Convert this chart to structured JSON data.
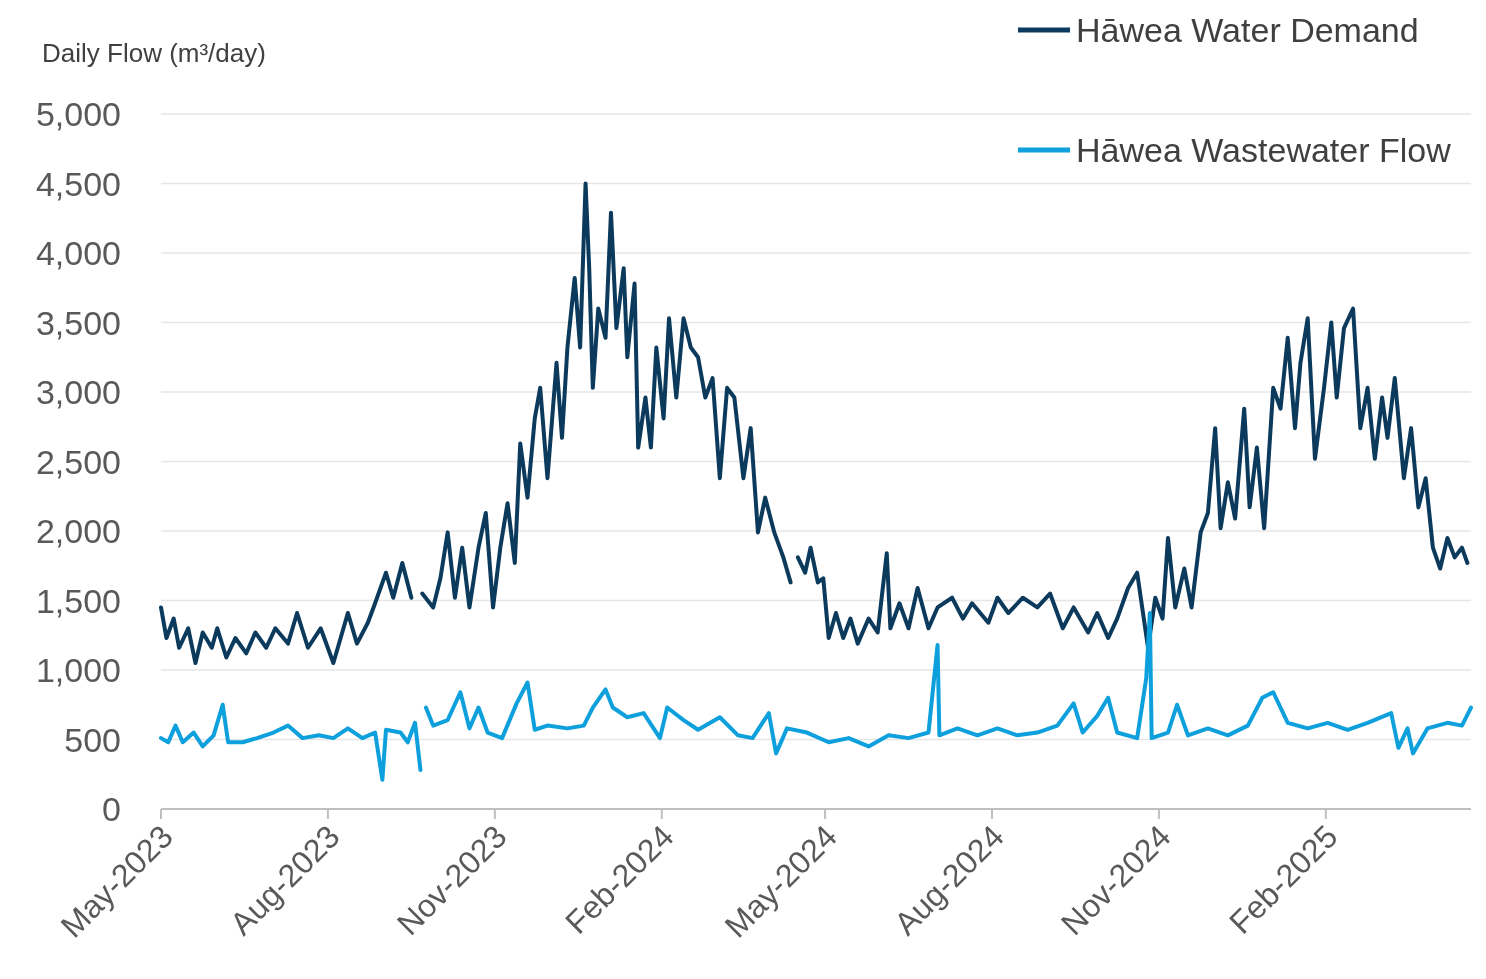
{
  "chart_data": {
    "type": "line",
    "ylabel": "Daily Flow (m³/day)",
    "xlim": [
      "2023-05-01",
      "2025-04-22"
    ],
    "xticks": [
      {
        "value": "2023-05-01",
        "label": "May-2023"
      },
      {
        "value": "2023-08-01",
        "label": "Aug-2023"
      },
      {
        "value": "2023-11-01",
        "label": "Nov-2023"
      },
      {
        "value": "2024-02-01",
        "label": "Feb-2024"
      },
      {
        "value": "2024-05-01",
        "label": "May-2024"
      },
      {
        "value": "2024-08-01",
        "label": "Aug-2024"
      },
      {
        "value": "2024-11-01",
        "label": "Nov-2024"
      },
      {
        "value": "2025-02-01",
        "label": "Feb-2025"
      }
    ],
    "ylim": [
      0,
      5000
    ],
    "yticks": [
      {
        "value": 0,
        "label": "0"
      },
      {
        "value": 500,
        "label": "500"
      },
      {
        "value": 1000,
        "label": "1,000"
      },
      {
        "value": 1500,
        "label": "1,500"
      },
      {
        "value": 2000,
        "label": "2,000"
      },
      {
        "value": 2500,
        "label": "2,500"
      },
      {
        "value": 3000,
        "label": "3,000"
      },
      {
        "value": 3500,
        "label": "3,500"
      },
      {
        "value": 4000,
        "label": "4,000"
      },
      {
        "value": 4500,
        "label": "4,500"
      },
      {
        "value": 5000,
        "label": "5,000"
      }
    ],
    "grid": "y",
    "legend": "top right",
    "marker": "none",
    "line_style": "solid",
    "series": [
      {
        "name": "Hāwea Water Demand",
        "color": "#0b3a5c",
        "x": [
          "2023-05-01",
          "2023-05-04",
          "2023-05-08",
          "2023-05-11",
          "2023-05-16",
          "2023-05-20",
          "2023-05-24",
          "2023-05-29",
          "2023-06-01",
          "2023-06-06",
          "2023-06-11",
          "2023-06-17",
          "2023-06-22",
          "2023-06-28",
          "2023-07-03",
          "2023-07-10",
          "2023-07-15",
          "2023-07-21",
          "2023-07-28",
          "2023-08-04",
          "2023-08-12",
          "2023-08-17",
          "2023-08-23",
          "2023-08-27",
          "2023-09-02",
          "2023-09-06",
          "2023-09-11",
          "2023-09-16",
          "2023-09-20",
          "2023-09-22",
          "2023-09-28",
          "2023-10-02",
          "2023-10-06",
          "2023-10-10",
          "2023-10-14",
          "2023-10-18",
          "2023-10-23",
          "2023-10-27",
          "2023-10-31",
          "2023-11-04",
          "2023-11-08",
          "2023-11-12",
          "2023-11-15",
          "2023-11-19",
          "2023-11-23",
          "2023-11-26",
          "2023-11-30",
          "2023-12-05",
          "2023-12-08",
          "2023-12-11",
          "2023-12-15",
          "2023-12-18",
          "2023-12-21",
          "2023-12-23",
          "2023-12-25",
          "2023-12-28",
          "2024-01-01",
          "2024-01-04",
          "2024-01-07",
          "2024-01-11",
          "2024-01-13",
          "2024-01-17",
          "2024-01-19",
          "2024-01-23",
          "2024-01-26",
          "2024-01-29",
          "2024-02-02",
          "2024-02-05",
          "2024-02-09",
          "2024-02-13",
          "2024-02-17",
          "2024-02-21",
          "2024-02-25",
          "2024-02-29",
          "2024-03-04",
          "2024-03-08",
          "2024-03-12",
          "2024-03-17",
          "2024-03-21",
          "2024-03-25",
          "2024-03-29",
          "2024-04-03",
          "2024-04-08",
          "2024-04-12",
          "2024-04-14",
          "2024-04-16",
          "2024-04-20",
          "2024-04-23",
          "2024-04-27",
          "2024-04-30",
          "2024-05-03",
          "2024-05-07",
          "2024-05-11",
          "2024-05-15",
          "2024-05-19",
          "2024-05-25",
          "2024-05-30",
          "2024-06-04",
          "2024-06-06",
          "2024-06-11",
          "2024-06-16",
          "2024-06-21",
          "2024-06-27",
          "2024-07-02",
          "2024-07-10",
          "2024-07-16",
          "2024-07-21",
          "2024-07-30",
          "2024-08-04",
          "2024-08-10",
          "2024-08-18",
          "2024-08-26",
          "2024-09-02",
          "2024-09-09",
          "2024-09-15",
          "2024-09-23",
          "2024-09-28",
          "2024-10-04",
          "2024-10-09",
          "2024-10-15",
          "2024-10-20",
          "2024-10-26",
          "2024-10-30",
          "2024-11-03",
          "2024-11-06",
          "2024-11-10",
          "2024-11-15",
          "2024-11-19",
          "2024-11-24",
          "2024-11-28",
          "2024-12-02",
          "2024-12-05",
          "2024-12-09",
          "2024-12-13",
          "2024-12-18",
          "2024-12-21",
          "2024-12-25",
          "2024-12-29",
          "2025-01-03",
          "2025-01-07",
          "2025-01-11",
          "2025-01-15",
          "2025-01-18",
          "2025-01-22",
          "2025-01-26",
          "2025-01-31",
          "2025-02-04",
          "2025-02-07",
          "2025-02-11",
          "2025-02-16",
          "2025-02-20",
          "2025-02-24",
          "2025-02-28",
          "2025-03-04",
          "2025-03-07",
          "2025-03-11",
          "2025-03-16",
          "2025-03-20",
          "2025-03-24",
          "2025-03-28",
          "2025-04-01",
          "2025-04-05",
          "2025-04-09",
          "2025-04-13",
          "2025-04-17",
          "2025-04-20"
        ],
        "values": [
          1450,
          1230,
          1370,
          1160,
          1300,
          1050,
          1270,
          1160,
          1300,
          1090,
          1230,
          1120,
          1270,
          1160,
          1300,
          1190,
          1410,
          1160,
          1300,
          1050,
          1410,
          1190,
          1340,
          1480,
          1700,
          1520,
          1770,
          1520,
          null,
          1550,
          1450,
          1660,
          1990,
          1520,
          1880,
          1450,
          1880,
          2130,
          1450,
          1880,
          2200,
          1770,
          2630,
          2240,
          2810,
          3030,
          2380,
          3210,
          2670,
          3320,
          3820,
          3320,
          4500,
          3890,
          3030,
          3600,
          3390,
          4290,
          3460,
          3890,
          3250,
          3780,
          2600,
          2960,
          2600,
          3320,
          2810,
          3530,
          2960,
          3530,
          3320,
          3250,
          2960,
          3100,
          2380,
          3030,
          2960,
          2380,
          2740,
          1990,
          2240,
          1990,
          1810,
          1630,
          null,
          1810,
          1700,
          1880,
          1630,
          1660,
          1230,
          1410,
          1230,
          1370,
          1190,
          1370,
          1270,
          1840,
          1300,
          1480,
          1300,
          1590,
          1300,
          1450,
          1520,
          1370,
          1480,
          1340,
          1520,
          1410,
          1520,
          1450,
          1550,
          1300,
          1450,
          1270,
          1410,
          1230,
          1370,
          1590,
          1700,
          1160,
          1520,
          1370,
          1950,
          1450,
          1730,
          1450,
          1990,
          2130,
          2740,
          2020,
          2350,
          2090,
          2880,
          2170,
          2600,
          2020,
          3030,
          2880,
          3390,
          2740,
          3210,
          3530,
          2520,
          3030,
          3500,
          2960,
          3460,
          3600,
          2740,
          3030,
          2520,
          2960,
          2670,
          3100,
          2380,
          2740,
          2170,
          2380,
          1880,
          1730,
          1950,
          1810,
          1880,
          1770
        ]
      },
      {
        "name": "Hāwea Wastewater Flow",
        "color": "#0ea0dc",
        "x": [
          "2023-05-01",
          "2023-05-05",
          "2023-05-09",
          "2023-05-13",
          "2023-05-19",
          "2023-05-24",
          "2023-05-30",
          "2023-06-04",
          "2023-06-07",
          "2023-06-15",
          "2023-06-23",
          "2023-07-02",
          "2023-07-10",
          "2023-07-18",
          "2023-07-27",
          "2023-08-04",
          "2023-08-12",
          "2023-08-20",
          "2023-08-27",
          "2023-08-31",
          "2023-09-02",
          "2023-09-10",
          "2023-09-14",
          "2023-09-18",
          "2023-09-21",
          "2023-09-22",
          "2023-09-24",
          "2023-09-28",
          "2023-10-06",
          "2023-10-13",
          "2023-10-18",
          "2023-10-23",
          "2023-10-28",
          "2023-11-05",
          "2023-11-13",
          "2023-11-19",
          "2023-11-23",
          "2023-11-30",
          "2023-12-11",
          "2023-12-20",
          "2023-12-25",
          "2024-01-01",
          "2024-01-05",
          "2024-01-13",
          "2024-01-22",
          "2024-01-31",
          "2024-02-04",
          "2024-02-13",
          "2024-02-21",
          "2024-03-04",
          "2024-03-14",
          "2024-03-22",
          "2024-03-31",
          "2024-04-04",
          "2024-04-10",
          "2024-04-21",
          "2024-05-03",
          "2024-05-14",
          "2024-05-25",
          "2024-06-05",
          "2024-06-16",
          "2024-06-27",
          "2024-07-02",
          "2024-07-03",
          "2024-07-13",
          "2024-07-24",
          "2024-08-04",
          "2024-08-15",
          "2024-08-26",
          "2024-09-06",
          "2024-09-15",
          "2024-09-20",
          "2024-09-28",
          "2024-10-04",
          "2024-10-09",
          "2024-10-20",
          "2024-10-25",
          "2024-10-27",
          "2024-10-28",
          "2024-11-06",
          "2024-11-11",
          "2024-11-17",
          "2024-11-28",
          "2024-12-09",
          "2024-12-20",
          "2024-12-28",
          "2025-01-03",
          "2025-01-11",
          "2025-01-22",
          "2025-02-02",
          "2025-02-13",
          "2025-02-24",
          "2025-03-09",
          "2025-03-13",
          "2025-03-18",
          "2025-03-21",
          "2025-03-29",
          "2025-04-09",
          "2025-04-17",
          "2025-04-22"
        ],
        "values": [
          510,
          480,
          600,
          480,
          550,
          450,
          530,
          750,
          480,
          480,
          510,
          550,
          600,
          510,
          530,
          510,
          580,
          510,
          550,
          210,
          570,
          550,
          480,
          620,
          280,
          null,
          730,
          600,
          640,
          840,
          580,
          730,
          550,
          510,
          760,
          910,
          570,
          600,
          580,
          600,
          730,
          860,
          730,
          660,
          690,
          510,
          730,
          640,
          570,
          660,
          530,
          510,
          690,
          400,
          580,
          550,
          480,
          510,
          450,
          530,
          510,
          550,
          1180,
          530,
          580,
          530,
          580,
          530,
          550,
          600,
          760,
          550,
          670,
          800,
          550,
          510,
          940,
          1410,
          510,
          550,
          750,
          530,
          580,
          530,
          600,
          800,
          840,
          620,
          580,
          620,
          570,
          620,
          690,
          440,
          580,
          400,
          580,
          620,
          600,
          730
        ]
      }
    ]
  }
}
